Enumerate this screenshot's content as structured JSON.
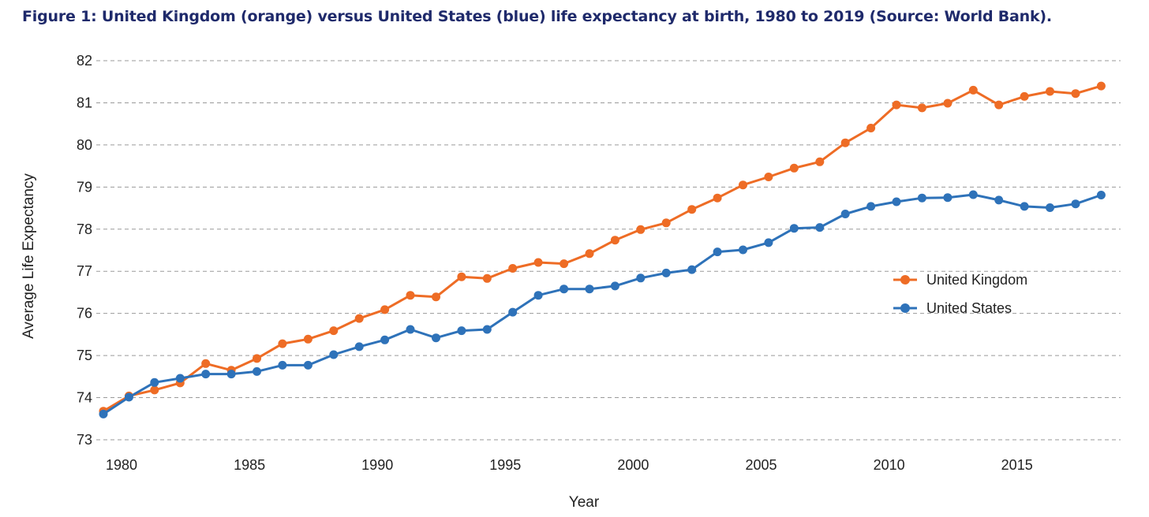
{
  "title": "Figure 1: United Kingdom (orange) versus United States (blue) life expectancy at birth, 1980 to 2019 (Source: World Bank).",
  "colors": {
    "uk": "#ee6c25",
    "us": "#2e72b9",
    "title": "#1f2a6b"
  },
  "chart_data": {
    "type": "line",
    "xlabel": "Year",
    "ylabel": "Average Life Expectancy",
    "xlim": [
      1980,
      2019
    ],
    "ylim": [
      73,
      82
    ],
    "yticks": [
      "73",
      "74",
      "75",
      "76",
      "77",
      "78",
      "79",
      "80",
      "81",
      "82"
    ],
    "xticks": [
      "1980",
      "1985",
      "1990",
      "1995",
      "2000",
      "2005",
      "2010",
      "2015"
    ],
    "grid": true,
    "legend_position": "right",
    "x": [
      1980,
      1981,
      1982,
      1983,
      1984,
      1985,
      1986,
      1987,
      1988,
      1989,
      1990,
      1991,
      1992,
      1993,
      1994,
      1995,
      1996,
      1997,
      1998,
      1999,
      2000,
      2001,
      2002,
      2003,
      2004,
      2005,
      2006,
      2007,
      2008,
      2009,
      2010,
      2011,
      2012,
      2013,
      2014,
      2015,
      2016,
      2017,
      2018,
      2019
    ],
    "series": [
      {
        "name": "United Kingdom",
        "color": "#ee6c25",
        "values": [
          73.68,
          74.04,
          74.18,
          74.35,
          74.81,
          74.65,
          74.93,
          75.28,
          75.39,
          75.59,
          75.88,
          76.09,
          76.43,
          76.39,
          76.87,
          76.83,
          77.07,
          77.21,
          77.18,
          77.42,
          77.74,
          77.99,
          78.15,
          78.47,
          78.74,
          79.05,
          79.24,
          79.45,
          79.6,
          80.05,
          80.4,
          80.95,
          80.88,
          80.99,
          81.3,
          80.95,
          81.15,
          81.27,
          81.22,
          81.4
        ]
      },
      {
        "name": "United States",
        "color": "#2e72b9",
        "values": [
          73.61,
          74.01,
          74.36,
          74.46,
          74.56,
          74.56,
          74.62,
          74.77,
          74.77,
          75.02,
          75.21,
          75.37,
          75.62,
          75.42,
          75.59,
          75.62,
          76.03,
          76.43,
          76.58,
          76.58,
          76.65,
          76.84,
          76.96,
          77.04,
          77.46,
          77.51,
          77.68,
          78.02,
          78.04,
          78.36,
          78.54,
          78.65,
          78.74,
          78.75,
          78.82,
          78.69,
          78.54,
          78.51,
          78.6,
          78.81
        ]
      }
    ]
  }
}
